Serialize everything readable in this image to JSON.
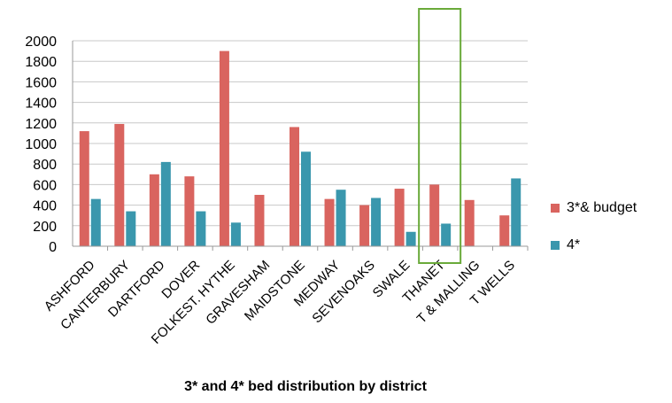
{
  "chart_data": {
    "type": "bar",
    "title": "3* and 4* bed distribution by district",
    "xlabel": "",
    "ylabel": "",
    "ylim": [
      0,
      2000
    ],
    "yticks": [
      0,
      200,
      400,
      600,
      800,
      1000,
      1200,
      1400,
      1600,
      1800,
      2000
    ],
    "grid": true,
    "legend_position": "right",
    "categories": [
      "ASHFORD",
      "CANTERBURY",
      "DARTFORD",
      "DOVER",
      "FOLKEST. HYTHE",
      "GRAVESHAM",
      "MAIDSTONE",
      "MEDWAY",
      "SEVENOAKS",
      "SWALE",
      "THANET",
      "T & MALLING",
      "T WELLS"
    ],
    "series": [
      {
        "name": "3*& budget",
        "color": "#d9645f",
        "values": [
          1120,
          1190,
          700,
          680,
          1900,
          500,
          1160,
          460,
          400,
          560,
          600,
          450,
          300
        ]
      },
      {
        "name": "4*",
        "color": "#3a97ad",
        "values": [
          460,
          340,
          820,
          340,
          230,
          0,
          920,
          550,
          470,
          140,
          220,
          0,
          660
        ]
      }
    ],
    "highlight_category": "THANET",
    "highlight_color": "#6aaa3a"
  }
}
